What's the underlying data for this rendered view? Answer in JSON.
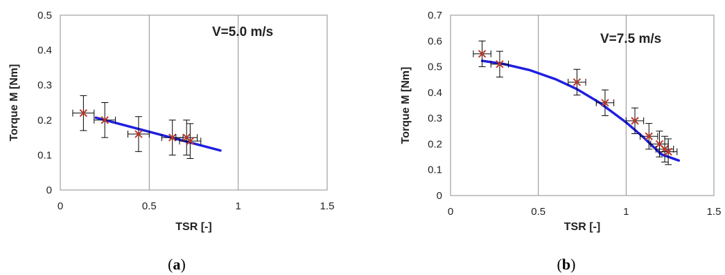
{
  "colors": {
    "fit_line": "#1f1fe0",
    "marker": "#c0392b",
    "grid": "#8c8c8c",
    "error_bar": "#000000"
  },
  "chart_data": [
    {
      "type": "scatter",
      "caption": "(a)",
      "annotation": "V=5.0 m/s",
      "xlabel": "TSR [-]",
      "ylabel": "Torque M [Nm]",
      "xlim": [
        0,
        1.5
      ],
      "ylim": [
        0,
        0.5
      ],
      "xticks": [
        "0",
        "0.5",
        "1",
        "1.5"
      ],
      "yticks": [
        "0",
        "0.1",
        "0.2",
        "0.3",
        "0.4",
        "0.5"
      ],
      "grid": true,
      "points": [
        {
          "x": 0.13,
          "y": 0.22,
          "xerr": 0.06,
          "yerr": 0.05
        },
        {
          "x": 0.25,
          "y": 0.2,
          "xerr": 0.06,
          "yerr": 0.05
        },
        {
          "x": 0.44,
          "y": 0.16,
          "xerr": 0.06,
          "yerr": 0.05
        },
        {
          "x": 0.63,
          "y": 0.15,
          "xerr": 0.06,
          "yerr": 0.05
        },
        {
          "x": 0.71,
          "y": 0.15,
          "xerr": 0.06,
          "yerr": 0.05
        },
        {
          "x": 0.73,
          "y": 0.14,
          "xerr": 0.06,
          "yerr": 0.05
        }
      ],
      "fit": {
        "x": [
          0.2,
          0.9
        ],
        "y": [
          0.207,
          0.113
        ]
      }
    },
    {
      "type": "scatter",
      "caption": "(b)",
      "annotation": "V=7.5 m/s",
      "xlabel": "TSR [-]",
      "ylabel": "Torque M [Nm]",
      "xlim": [
        0,
        1.5
      ],
      "ylim": [
        0,
        0.7
      ],
      "xticks": [
        "0",
        "0.5",
        "1",
        "1.5"
      ],
      "yticks": [
        "0",
        "0.1",
        "0.2",
        "0.3",
        "0.4",
        "0.5",
        "0.6",
        "0.7"
      ],
      "grid": true,
      "points": [
        {
          "x": 0.18,
          "y": 0.55,
          "xerr": 0.05,
          "yerr": 0.05
        },
        {
          "x": 0.28,
          "y": 0.51,
          "xerr": 0.05,
          "yerr": 0.05
        },
        {
          "x": 0.72,
          "y": 0.44,
          "xerr": 0.05,
          "yerr": 0.05
        },
        {
          "x": 0.88,
          "y": 0.36,
          "xerr": 0.05,
          "yerr": 0.05
        },
        {
          "x": 1.05,
          "y": 0.29,
          "xerr": 0.05,
          "yerr": 0.05
        },
        {
          "x": 1.13,
          "y": 0.23,
          "xerr": 0.05,
          "yerr": 0.05
        },
        {
          "x": 1.19,
          "y": 0.2,
          "xerr": 0.05,
          "yerr": 0.05
        },
        {
          "x": 1.22,
          "y": 0.18,
          "xerr": 0.05,
          "yerr": 0.05
        },
        {
          "x": 1.24,
          "y": 0.17,
          "xerr": 0.05,
          "yerr": 0.05
        }
      ],
      "fit": {
        "x": [
          0.18,
          0.3,
          0.45,
          0.6,
          0.72,
          0.85,
          1.0,
          1.1,
          1.2,
          1.3
        ],
        "y": [
          0.523,
          0.511,
          0.487,
          0.451,
          0.413,
          0.36,
          0.284,
          0.225,
          0.16,
          0.136
        ]
      }
    }
  ]
}
